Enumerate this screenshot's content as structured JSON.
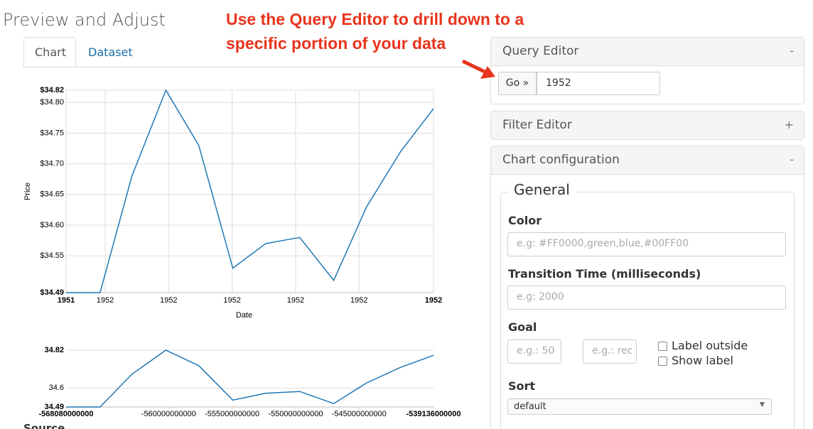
{
  "page_title": "Preview and Adjust",
  "tabs": [
    "Chart",
    "Dataset"
  ],
  "annotation": [
    "Use the Query Editor to drill down to a",
    "specific portion of your data"
  ],
  "query_editor": {
    "title": "Query Editor",
    "toggle": "-",
    "button": "Go »",
    "value": "1952"
  },
  "filter_editor": {
    "title": "Filter Editor",
    "toggle": "+"
  },
  "chart_configuration": {
    "title": "Chart configuration",
    "toggle": "-",
    "section": "General",
    "color": {
      "label": "Color",
      "placeholder": "e.g: #FF0000,green,blue,#00FF00"
    },
    "transition": {
      "label": "Transition Time (milliseconds)",
      "placeholder": "e.g: 2000"
    },
    "goal": {
      "label": "Goal",
      "placeholder_1": "e.g.: 50",
      "placeholder_2": "e.g.: rec",
      "checkbox_1": "Label outside",
      "checkbox_2": "Show label"
    },
    "sort": {
      "label": "Sort",
      "value": "default"
    }
  },
  "source_label": "Source",
  "chart_data": [
    {
      "type": "line",
      "x_label": "Date",
      "y_label": "Price",
      "x": [
        -568080000000,
        -565401600000,
        -562896000000,
        -560217600000,
        -557625600000,
        -554947200000,
        -552355200000,
        -549676800000,
        -546998400000,
        -544406400000,
        -541728000000,
        -539136000000
      ],
      "values": [
        34.49,
        34.49,
        34.68,
        34.82,
        34.73,
        34.53,
        34.57,
        34.58,
        34.51,
        34.63,
        34.72,
        34.79
      ],
      "color": "#1f77b4",
      "xlim": [
        -568080000000,
        -539136000000
      ],
      "ylim": [
        34.49,
        34.82
      ],
      "xticks": [
        {
          "value": -568080000000,
          "label": "1951"
        },
        {
          "value": -565000000000,
          "label": "1952"
        },
        {
          "value": -560000000000,
          "label": "1952"
        },
        {
          "value": -555000000000,
          "label": "1952"
        },
        {
          "value": -550000000000,
          "label": "1952"
        },
        {
          "value": -545000000000,
          "label": "1952"
        },
        {
          "value": -539136000000,
          "label": "1952"
        }
      ],
      "yticks": [
        {
          "value": 34.49,
          "label": "$34.49"
        },
        {
          "value": 34.55,
          "label": "$34.55"
        },
        {
          "value": 34.6,
          "label": "$34.60"
        },
        {
          "value": 34.65,
          "label": "$34.65"
        },
        {
          "value": 34.7,
          "label": "$34.70"
        },
        {
          "value": 34.75,
          "label": "$34.75"
        },
        {
          "value": 34.8,
          "label": "$34.80"
        },
        {
          "value": 34.82,
          "label": "$34.82"
        }
      ],
      "grid": "xy"
    },
    {
      "type": "line",
      "x": [
        -568080000000,
        -565401600000,
        -562896000000,
        -560217600000,
        -557625600000,
        -554947200000,
        -552355200000,
        -549676800000,
        -546998400000,
        -544406400000,
        -541728000000,
        -539136000000
      ],
      "values": [
        34.49,
        34.49,
        34.68,
        34.82,
        34.73,
        34.53,
        34.57,
        34.58,
        34.51,
        34.63,
        34.72,
        34.79
      ],
      "color": "#1f77b4",
      "xlim": [
        -568080000000,
        -539136000000
      ],
      "ylim": [
        34.49,
        34.82
      ],
      "xticks": [
        -568080000000,
        -560000000000,
        -555000000000,
        -550000000000,
        -545000000000,
        -539136000000
      ],
      "yticks": [
        34.49,
        34.6,
        34.82
      ],
      "grid": "y"
    }
  ]
}
